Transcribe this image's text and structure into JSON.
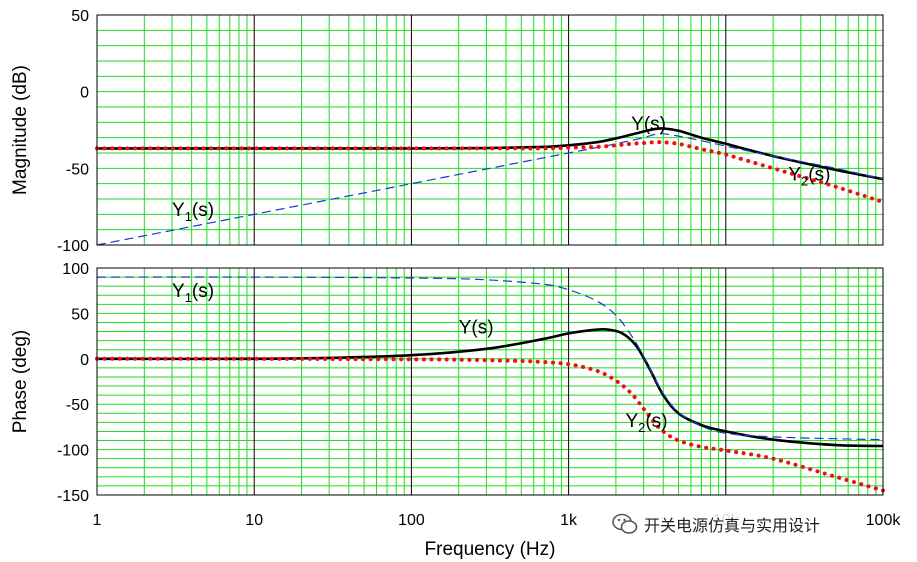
{
  "colors": {
    "grid_minor": "#22dd22",
    "grid_major": "#000000",
    "series_Y": "#000000",
    "series_Y1": "#1a3ccc",
    "series_Y2": "#ee1111"
  },
  "watermark": {
    "icon": "wechat-logo-icon",
    "text": "开关电源仿真与实用设计"
  },
  "chart_data": [
    {
      "type": "line",
      "xscale": "log",
      "xlim": [
        1,
        100000
      ],
      "ylim": [
        -100,
        50
      ],
      "xlabel": "",
      "ylabel": "Magnitude (dB)",
      "grid": true,
      "xtick_labels": [],
      "ytick_labels": [
        "50",
        "0",
        "-50",
        "-100"
      ],
      "yticks": [
        50,
        0,
        -50,
        -100
      ],
      "annotations": [
        {
          "text": "Y(s)",
          "base": "Y",
          "sub": "",
          "tail": "(s)",
          "x": 2500,
          "y": -25
        },
        {
          "text": "Y1(s)",
          "base": "Y",
          "sub": "1",
          "tail": "(s)",
          "x": 3,
          "y": -81
        },
        {
          "text": "Y2(s)",
          "base": "Y",
          "sub": "2",
          "tail": "(s)",
          "x": 25000,
          "y": -58
        }
      ],
      "series": [
        {
          "name": "Y(s)",
          "style": "solid",
          "x": [
            1,
            10,
            100,
            300,
            700,
            1000,
            1500,
            2000,
            2500,
            3000,
            3500,
            4000,
            5000,
            7000,
            10000,
            20000,
            50000,
            100000
          ],
          "y": [
            -37,
            -37,
            -37,
            -36.8,
            -36,
            -35,
            -33,
            -30.5,
            -28,
            -26,
            -24.5,
            -24,
            -25.5,
            -30,
            -34,
            -42,
            -51,
            -57
          ]
        },
        {
          "name": "Y1(s)",
          "style": "dashed",
          "x": [
            1,
            10,
            100,
            1000,
            2000,
            3000,
            3500,
            4000,
            5000,
            7000,
            10000,
            20000,
            50000,
            100000
          ],
          "y": [
            -100,
            -80,
            -60,
            -40,
            -34,
            -30,
            -28,
            -27.5,
            -29,
            -32,
            -35.5,
            -42,
            -50,
            -57
          ]
        },
        {
          "name": "Y2(s)",
          "style": "dotted",
          "x": [
            1,
            10,
            100,
            300,
            700,
            1000,
            1500,
            2000,
            2500,
            3000,
            3500,
            4000,
            5000,
            7000,
            10000,
            20000,
            50000,
            100000
          ],
          "y": [
            -37,
            -37,
            -37,
            -37,
            -37,
            -36.5,
            -36,
            -35,
            -34,
            -33.5,
            -33,
            -33,
            -34,
            -37.5,
            -41,
            -50,
            -62,
            -72
          ]
        }
      ]
    },
    {
      "type": "line",
      "xscale": "log",
      "xlim": [
        1,
        100000
      ],
      "ylim": [
        -150,
        100
      ],
      "xlabel": "Frequency (Hz)",
      "ylabel": "Phase (deg)",
      "grid": true,
      "xtick_labels": [
        "1",
        "10",
        "100",
        "1k",
        "10k",
        "100k"
      ],
      "xticks": [
        1,
        10,
        100,
        1000,
        10000,
        100000
      ],
      "ytick_labels": [
        "100",
        "50",
        "0",
        "-50",
        "-100",
        "-150"
      ],
      "yticks": [
        100,
        50,
        0,
        -50,
        -100,
        -150
      ],
      "annotations": [
        {
          "text": "Y1(s)",
          "base": "Y",
          "sub": "1",
          "tail": "(s)",
          "x": 3,
          "y": 68
        },
        {
          "text": "Y(s)",
          "base": "Y",
          "sub": "",
          "tail": "(s)",
          "x": 200,
          "y": 28
        },
        {
          "text": "Y2(s)",
          "base": "Y",
          "sub": "2",
          "tail": "(s)",
          "x": 2300,
          "y": -75
        }
      ],
      "series": [
        {
          "name": "Y(s)",
          "style": "solid",
          "x": [
            1,
            10,
            30,
            100,
            300,
            700,
            1000,
            1500,
            1800,
            2200,
            2700,
            3300,
            4000,
            5000,
            7000,
            10000,
            20000,
            50000,
            100000
          ],
          "y": [
            0,
            0,
            1,
            4,
            11,
            22,
            28,
            32,
            32,
            28,
            14,
            -12,
            -40,
            -60,
            -73,
            -80,
            -89,
            -95,
            -96
          ]
        },
        {
          "name": "Y1(s)",
          "style": "dashed",
          "x": [
            1,
            10,
            100,
            300,
            700,
            1000,
            1500,
            2000,
            2500,
            3000,
            3500,
            4000,
            5000,
            7000,
            10000,
            20000,
            50000,
            100000
          ],
          "y": [
            90,
            90,
            89,
            87,
            82,
            76,
            64,
            48,
            26,
            3,
            -20,
            -38,
            -59,
            -74,
            -82,
            -86,
            -88,
            -89
          ]
        },
        {
          "name": "Y2(s)",
          "style": "dotted",
          "x": [
            1,
            10,
            100,
            200,
            400,
            600,
            1000,
            1500,
            2000,
            2500,
            3000,
            3500,
            4000,
            5000,
            7000,
            10000,
            20000,
            50000,
            100000
          ],
          "y": [
            0,
            0,
            -0.5,
            -1,
            -2,
            -3,
            -6,
            -13,
            -24,
            -38,
            -55,
            -70,
            -80,
            -90,
            -97,
            -101,
            -110,
            -130,
            -145
          ]
        }
      ]
    }
  ]
}
